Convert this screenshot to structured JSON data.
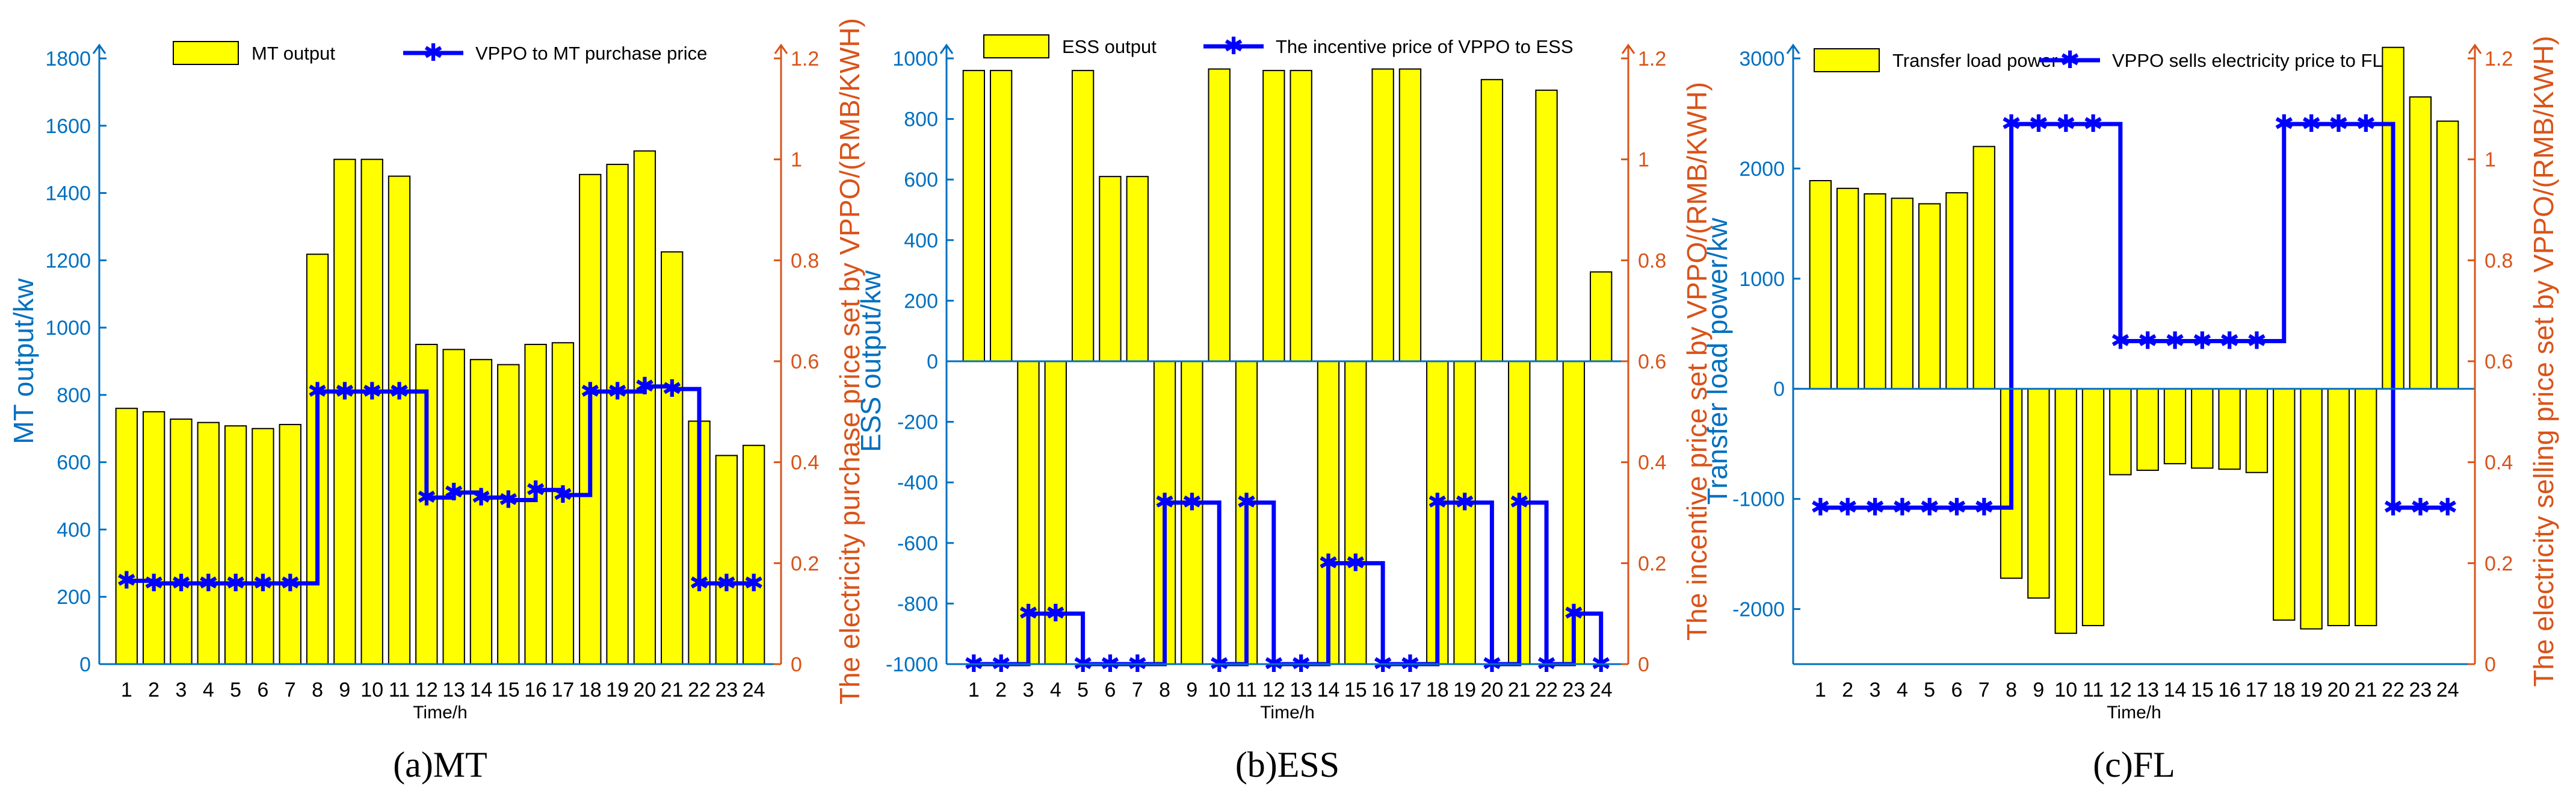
{
  "colors": {
    "bar": "#ffff00",
    "bar_edge": "#000000",
    "line": "#0000ff",
    "left_axis": "#0070c0",
    "right_axis": "#d95319"
  },
  "chart_data": [
    {
      "type": "bar",
      "caption": "(a)MT",
      "xlabel": "Time/h",
      "ylabel": "MT output/kw",
      "y2label": "The electricity purchase price set by VPPO/(RMB/KWH)",
      "categories": [
        "1",
        "2",
        "3",
        "4",
        "5",
        "6",
        "7",
        "8",
        "9",
        "10",
        "11",
        "12",
        "13",
        "14",
        "15",
        "16",
        "17",
        "18",
        "19",
        "20",
        "21",
        "22",
        "23",
        "24"
      ],
      "ylim": [
        0,
        1800
      ],
      "yticks": [
        0,
        200,
        400,
        600,
        800,
        1000,
        1200,
        1400,
        1600,
        1800
      ],
      "y2lim": [
        0,
        1.2
      ],
      "y2ticks": [
        0,
        0.2,
        0.4,
        0.6,
        0.8,
        1,
        1.2
      ],
      "series": [
        {
          "name": "MT output",
          "kind": "bar",
          "axis": "left",
          "values": [
            760,
            750,
            728,
            718,
            708,
            700,
            712,
            1218,
            1500,
            1500,
            1450,
            950,
            935,
            905,
            890,
            950,
            955,
            1455,
            1485,
            1525,
            1225,
            722,
            620,
            650
          ]
        },
        {
          "name": "VPPO to MT purchase price",
          "kind": "line",
          "axis": "right",
          "values": [
            0.165,
            0.16,
            0.16,
            0.16,
            0.16,
            0.16,
            0.16,
            0.54,
            0.54,
            0.54,
            0.54,
            0.33,
            0.34,
            0.33,
            0.325,
            0.345,
            0.335,
            0.54,
            0.54,
            0.55,
            0.545,
            0.16,
            0.16,
            0.16
          ]
        }
      ]
    },
    {
      "type": "bar",
      "caption": "(b)ESS",
      "xlabel": "Time/h",
      "ylabel": "ESS output/kw",
      "y2label": "The incentive price set by VPPO/(RMB/KWH)",
      "categories": [
        "1",
        "2",
        "3",
        "4",
        "5",
        "6",
        "7",
        "8",
        "9",
        "10",
        "11",
        "12",
        "13",
        "14",
        "15",
        "16",
        "17",
        "18",
        "19",
        "20",
        "21",
        "22",
        "23",
        "24"
      ],
      "ylim": [
        -1000,
        1000
      ],
      "yticks": [
        -1000,
        -800,
        -600,
        -400,
        -200,
        0,
        200,
        400,
        600,
        800,
        1000
      ],
      "y2lim": [
        0,
        1.2
      ],
      "y2ticks": [
        0,
        0.2,
        0.4,
        0.6,
        0.8,
        1,
        1.2
      ],
      "series": [
        {
          "name": "ESS output",
          "kind": "bar",
          "axis": "left",
          "values": [
            960,
            960,
            -1000,
            -1000,
            960,
            610,
            610,
            -1000,
            -1000,
            965,
            -1000,
            960,
            960,
            -1000,
            -1000,
            965,
            965,
            -1000,
            -1000,
            930,
            -1000,
            895,
            -1000,
            295
          ]
        },
        {
          "name": "The incentive price of VPPO to ESS",
          "kind": "line",
          "axis": "right",
          "values": [
            0,
            0,
            0.1,
            0.1,
            0,
            0,
            0,
            0.32,
            0.32,
            0,
            0.32,
            0,
            0,
            0.2,
            0.2,
            0,
            0,
            0.32,
            0.32,
            0,
            0.32,
            0,
            0.1,
            0
          ]
        }
      ]
    },
    {
      "type": "bar",
      "caption": "(c)FL",
      "xlabel": "Time/h",
      "ylabel": "Transfer load power/kw",
      "y2label": "The electricity selling price set by VPPO/(RMB/KWH)",
      "categories": [
        "1",
        "2",
        "3",
        "4",
        "5",
        "6",
        "7",
        "8",
        "9",
        "10",
        "11",
        "12",
        "13",
        "14",
        "15",
        "16",
        "17",
        "18",
        "19",
        "20",
        "21",
        "22",
        "23",
        "24"
      ],
      "ylim": [
        -2500,
        3000
      ],
      "yticks": [
        -2000,
        -1000,
        0,
        1000,
        2000,
        3000
      ],
      "y2lim": [
        0,
        1.2
      ],
      "y2ticks": [
        0,
        0.2,
        0.4,
        0.6,
        0.8,
        1,
        1.2
      ],
      "series": [
        {
          "name": "Transfer load power",
          "kind": "bar",
          "axis": "left",
          "values": [
            1890,
            1820,
            1770,
            1730,
            1680,
            1780,
            2200,
            -1720,
            -1900,
            -2220,
            -2150,
            -780,
            -740,
            -680,
            -720,
            -730,
            -760,
            -2100,
            -2180,
            -2150,
            -2150,
            3100,
            2650,
            2430
          ]
        },
        {
          "name": "VPPO sells electricity price to FL",
          "kind": "line",
          "axis": "right",
          "values": [
            0.31,
            0.31,
            0.31,
            0.31,
            0.31,
            0.31,
            0.31,
            1.07,
            1.07,
            1.07,
            1.07,
            0.64,
            0.64,
            0.64,
            0.64,
            0.64,
            0.64,
            1.07,
            1.07,
            1.07,
            1.07,
            0.31,
            0.31,
            0.31
          ]
        }
      ]
    }
  ]
}
